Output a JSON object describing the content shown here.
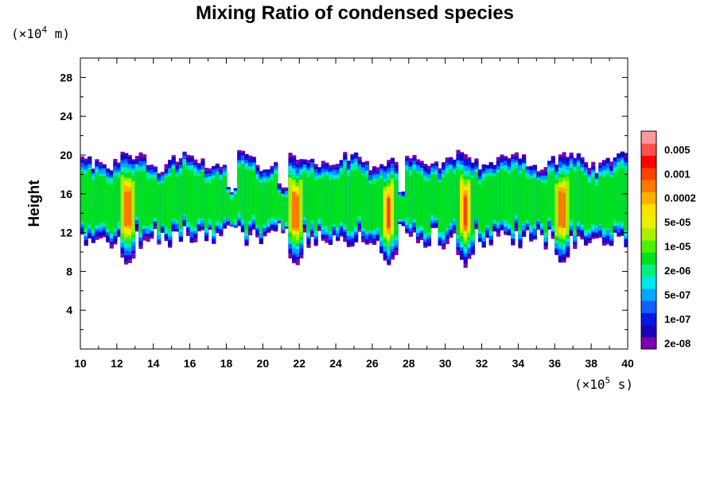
{
  "chart_data": {
    "type": "heatmap",
    "title": "Mixing Ratio of condensed species",
    "ylabel": "Height",
    "x_unit": {
      "prefix": "(×10",
      "exp": "5",
      "suffix": " s)"
    },
    "y_unit": {
      "prefix": "(×10",
      "exp": "4",
      "suffix": " m)"
    },
    "xlim": [
      10,
      40
    ],
    "ylim": [
      0,
      30
    ],
    "x_ticks": [
      10,
      12,
      14,
      16,
      18,
      20,
      22,
      24,
      26,
      28,
      30,
      32,
      34,
      36,
      38,
      40
    ],
    "y_ticks": [
      4,
      8,
      12,
      16,
      20,
      24,
      28
    ],
    "colorbar": {
      "levels": [
        {
          "color": "#7b00b0",
          "label": "2e-08"
        },
        {
          "color": "#1c00b8",
          "label": ""
        },
        {
          "color": "#0018e8",
          "label": "1e-07"
        },
        {
          "color": "#1060ff",
          "label": ""
        },
        {
          "color": "#00a8ff",
          "label": "5e-07"
        },
        {
          "color": "#00e8e8",
          "label": ""
        },
        {
          "color": "#00f080",
          "label": "2e-06"
        },
        {
          "color": "#00e020",
          "label": ""
        },
        {
          "color": "#50f000",
          "label": "1e-05"
        },
        {
          "color": "#a8f000",
          "label": ""
        },
        {
          "color": "#e8f000",
          "label": "5e-05"
        },
        {
          "color": "#ffe000",
          "label": ""
        },
        {
          "color": "#ffb000",
          "label": "0.0002"
        },
        {
          "color": "#ff7800",
          "label": ""
        },
        {
          "color": "#ff4000",
          "label": "0.001"
        },
        {
          "color": "#ff0000",
          "label": ""
        },
        {
          "color": "#ff5050",
          "label": "0.005"
        },
        {
          "color": "#ff9a9a",
          "label": ""
        }
      ]
    },
    "cloud": {
      "cloud_base_height": 8.5,
      "cloud_top_height": 20,
      "intense_columns_x": [
        12.5,
        21.7,
        26.8,
        31.0,
        36.3
      ],
      "gaps_x": [
        18.2,
        21.0,
        27.5
      ]
    }
  }
}
